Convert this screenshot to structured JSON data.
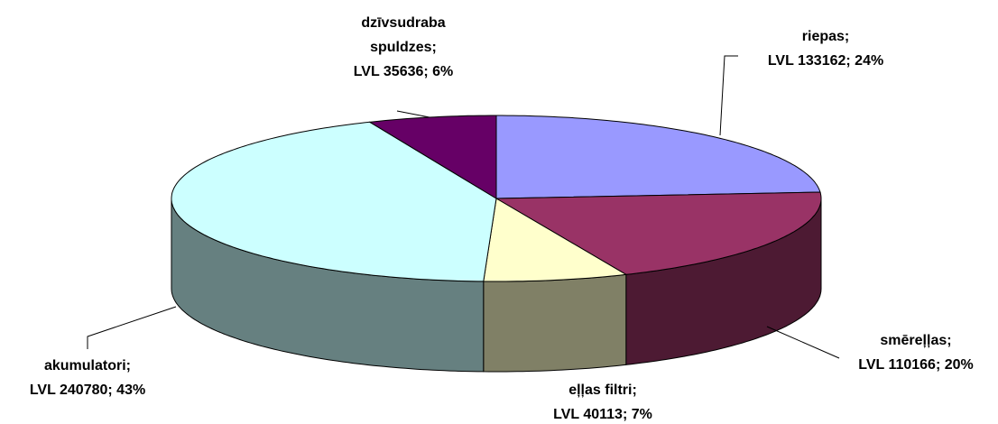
{
  "chart_data": {
    "type": "pie3d",
    "categories": [
      "riepas;",
      "smēreļļas;",
      "eļļas filtri;",
      "akumulatori;",
      "dzīvsudraba spuldzes;"
    ],
    "values": [
      133162,
      110166,
      40113,
      240780,
      35636
    ],
    "value_labels": [
      "LVL 133162; 24%",
      "LVL 110166; 20%",
      "LVL 40113; 7%",
      "LVL 240780; 43%",
      "LVL 35636; 6%"
    ],
    "colors": [
      "#9999ff",
      "#993366",
      "#ffffcc",
      "#ccffff",
      "#660066"
    ]
  }
}
